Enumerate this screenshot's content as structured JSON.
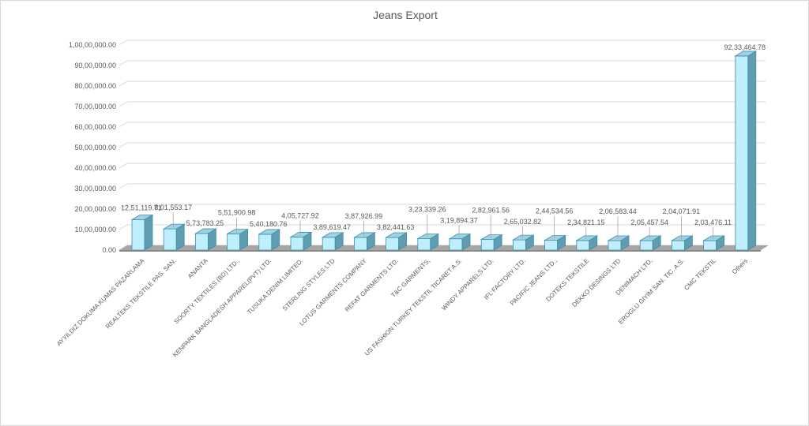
{
  "chart_data": {
    "type": "bar",
    "title": "Jeans Export",
    "xlabel": "",
    "ylabel": "",
    "ylim": [
      0,
      10000000
    ],
    "y_ticks": [
      "0.00",
      "10,00,000.00",
      "20,00,000.00",
      "30,00,000.00",
      "40,00,000.00",
      "50,00,000.00",
      "60,00,000.00",
      "70,00,000.00",
      "80,00,000.00",
      "90,00,000.00",
      "1,00,00,000.00"
    ],
    "grid": true,
    "legend": "none",
    "bar_color": "#bfeefc",
    "categories": [
      "AYYILDIZ DOKUMA KUMAS PAZARLAMA",
      "REALTEKS TEKSTILE PAS. SAN.",
      "ANANTA",
      "SOORTY TEXTILES (BD) LTD.,",
      "KENPARK BANGLADESH APPAREL(PVT) LTD.",
      "TUSUKA DENIM LIMITED.",
      "STERLING STYLES LTD",
      "LOTUS GARMENTS COMPANY",
      "REFAT GARMENTS LTD.",
      "T&C GARMENTS,",
      "US FASHION TURKEY TEKSTIL TICARET A.S.",
      "WINDY APPARELS LTD.",
      "IFL FACTORY LTD.",
      "PACIFIC JEANS LTD.,",
      "DOTEKS TEKSTILE",
      "DEKKO DESINGS LTD",
      "DENIMACH LTD,",
      "EROGLU GIYIM SAN. TIC. A.S.",
      "CMC TEKSTIL",
      "Others"
    ],
    "values": [
      1251119.71,
      801553.17,
      573783.25,
      551900.98,
      540180.76,
      405727.92,
      389619.47,
      387926.99,
      382441.63,
      323339.26,
      319894.37,
      282961.56,
      265032.82,
      244534.56,
      234821.15,
      206583.44,
      205457.54,
      204071.91,
      203476.11,
      9233464.78
    ],
    "data_labels": [
      "12,51,119.71",
      "8,01,553.17",
      "5,73,783.25",
      "5,51,900.98",
      "5,40,180.76",
      "4,05,727.92",
      "3,89,619.47",
      "3,87,926.99",
      "3,82,441.63",
      "3,23,339.26",
      "3,19,894.37",
      "2,82,961.56",
      "2,65,032.82",
      "2,44,534.56",
      "2,34,821.15",
      "2,06,583.44",
      "2,05,457.54",
      "2,04,071.91",
      "2,03,476.11",
      "92,33,464.78"
    ]
  }
}
